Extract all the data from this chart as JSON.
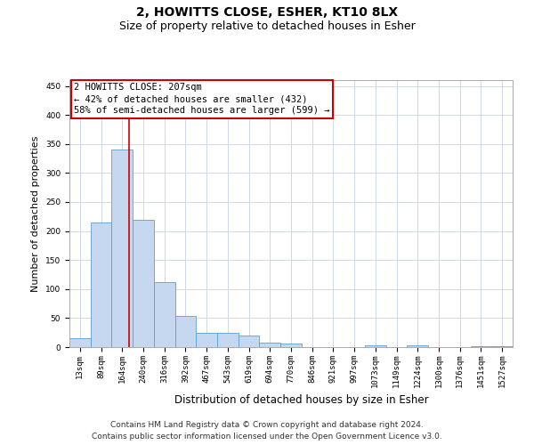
{
  "title": "2, HOWITTS CLOSE, ESHER, KT10 8LX",
  "subtitle": "Size of property relative to detached houses in Esher",
  "xlabel": "Distribution of detached houses by size in Esher",
  "ylabel": "Number of detached properties",
  "footnote1": "Contains HM Land Registry data © Crown copyright and database right 2024.",
  "footnote2": "Contains public sector information licensed under the Open Government Licence v3.0.",
  "categories": [
    "13sqm",
    "89sqm",
    "164sqm",
    "240sqm",
    "316sqm",
    "392sqm",
    "467sqm",
    "543sqm",
    "619sqm",
    "694sqm",
    "770sqm",
    "846sqm",
    "921sqm",
    "997sqm",
    "1073sqm",
    "1149sqm",
    "1224sqm",
    "1300sqm",
    "1376sqm",
    "1451sqm",
    "1527sqm"
  ],
  "values": [
    15,
    215,
    340,
    220,
    112,
    53,
    25,
    24,
    20,
    8,
    6,
    0,
    0,
    0,
    3,
    0,
    3,
    0,
    0,
    2,
    2
  ],
  "bar_color": "#c5d8f0",
  "bar_edge_color": "#5a9fd4",
  "grid_color": "#d0d8e8",
  "annotation_line1": "2 HOWITTS CLOSE: 207sqm",
  "annotation_line2": "← 42% of detached houses are smaller (432)",
  "annotation_line3": "58% of semi-detached houses are larger (599) →",
  "annotation_box_color": "#ffffff",
  "annotation_box_edge": "#cc0000",
  "vline_x": 2.33,
  "vline_color": "#cc0000",
  "ylim": [
    0,
    460
  ],
  "title_fontsize": 10,
  "subtitle_fontsize": 9,
  "annot_fontsize": 7.5,
  "tick_fontsize": 6.5,
  "ylabel_fontsize": 8,
  "xlabel_fontsize": 8.5,
  "footnote_fontsize": 6.5
}
